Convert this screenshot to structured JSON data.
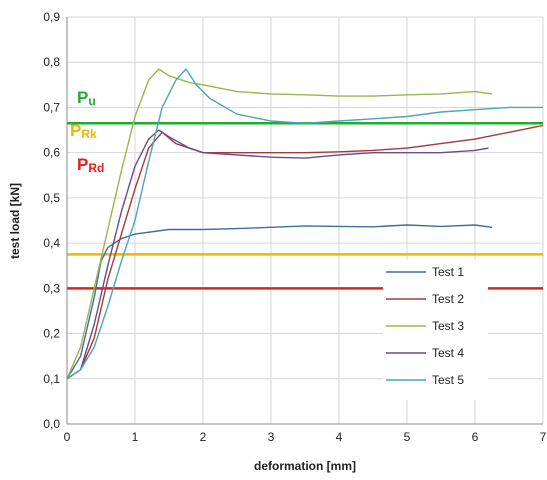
{
  "chart_data": {
    "type": "line",
    "xlabel": "deformation [mm]",
    "ylabel": "test load [kN]",
    "xlim": [
      0,
      7
    ],
    "ylim": [
      0,
      0.9
    ],
    "x_ticks": [
      "0",
      "1",
      "2",
      "3",
      "4",
      "5",
      "6",
      "7"
    ],
    "y_ticks": [
      "0,0",
      "0,1",
      "0,2",
      "0,3",
      "0,4",
      "0,5",
      "0,6",
      "0,7",
      "0,8",
      "0,9"
    ],
    "grid": true,
    "legend_position": "bottom-right",
    "reference_lines": [
      {
        "main": "P",
        "sub": "u",
        "value": 0.665,
        "color": "#22aa33"
      },
      {
        "main": "P",
        "sub": "Rk",
        "value": 0.375,
        "color": "#f0b400"
      },
      {
        "main": "P",
        "sub": "Rd",
        "value": 0.3,
        "color": "#e02020"
      }
    ],
    "series": [
      {
        "name": "Test 1",
        "color": "#3f6f9a",
        "x": [
          0,
          0.2,
          0.4,
          0.5,
          0.6,
          0.8,
          1.0,
          1.5,
          2.0,
          2.5,
          3.0,
          3.5,
          4.0,
          4.5,
          5.0,
          5.5,
          6.0,
          6.25
        ],
        "y": [
          0.1,
          0.15,
          0.28,
          0.36,
          0.39,
          0.41,
          0.42,
          0.43,
          0.43,
          0.432,
          0.435,
          0.438,
          0.437,
          0.436,
          0.44,
          0.437,
          0.44,
          0.435
        ]
      },
      {
        "name": "Test 2",
        "color": "#a33a3a",
        "x": [
          0,
          0.2,
          0.4,
          0.6,
          0.8,
          1.0,
          1.2,
          1.4,
          1.6,
          2.0,
          2.5,
          3.0,
          3.5,
          4.0,
          4.5,
          5.0,
          5.5,
          6.0,
          6.5,
          7.0
        ],
        "y": [
          0.1,
          0.12,
          0.19,
          0.32,
          0.42,
          0.52,
          0.61,
          0.645,
          0.62,
          0.6,
          0.6,
          0.6,
          0.6,
          0.602,
          0.605,
          0.61,
          0.62,
          0.63,
          0.645,
          0.66
        ]
      },
      {
        "name": "Test 3",
        "color": "#9bb54f",
        "x": [
          0,
          0.2,
          0.4,
          0.6,
          0.8,
          1.0,
          1.2,
          1.35,
          1.5,
          1.8,
          2.0,
          2.5,
          3.0,
          3.5,
          4.0,
          4.5,
          5.0,
          5.5,
          6.0,
          6.25
        ],
        "y": [
          0.1,
          0.17,
          0.3,
          0.43,
          0.56,
          0.68,
          0.76,
          0.785,
          0.77,
          0.755,
          0.75,
          0.735,
          0.73,
          0.728,
          0.725,
          0.725,
          0.728,
          0.73,
          0.735,
          0.73
        ]
      },
      {
        "name": "Test 4",
        "color": "#6a4a8c",
        "x": [
          0,
          0.2,
          0.4,
          0.6,
          0.8,
          1.0,
          1.2,
          1.35,
          1.5,
          1.8,
          2.0,
          2.5,
          3.0,
          3.5,
          4.0,
          4.5,
          5.0,
          5.5,
          6.0,
          6.2
        ],
        "y": [
          0.1,
          0.12,
          0.22,
          0.35,
          0.47,
          0.57,
          0.63,
          0.65,
          0.635,
          0.61,
          0.6,
          0.595,
          0.59,
          0.588,
          0.595,
          0.6,
          0.6,
          0.6,
          0.605,
          0.61
        ]
      },
      {
        "name": "Test 5",
        "color": "#4aa6b8",
        "x": [
          0,
          0.2,
          0.4,
          0.6,
          0.8,
          1.0,
          1.2,
          1.4,
          1.6,
          1.75,
          1.9,
          2.1,
          2.5,
          3.0,
          3.5,
          4.0,
          4.5,
          5.0,
          5.5,
          6.0,
          6.5,
          7.0
        ],
        "y": [
          0.1,
          0.12,
          0.17,
          0.26,
          0.36,
          0.45,
          0.58,
          0.7,
          0.76,
          0.785,
          0.75,
          0.72,
          0.685,
          0.67,
          0.665,
          0.67,
          0.675,
          0.68,
          0.69,
          0.695,
          0.7,
          0.7
        ]
      }
    ]
  }
}
